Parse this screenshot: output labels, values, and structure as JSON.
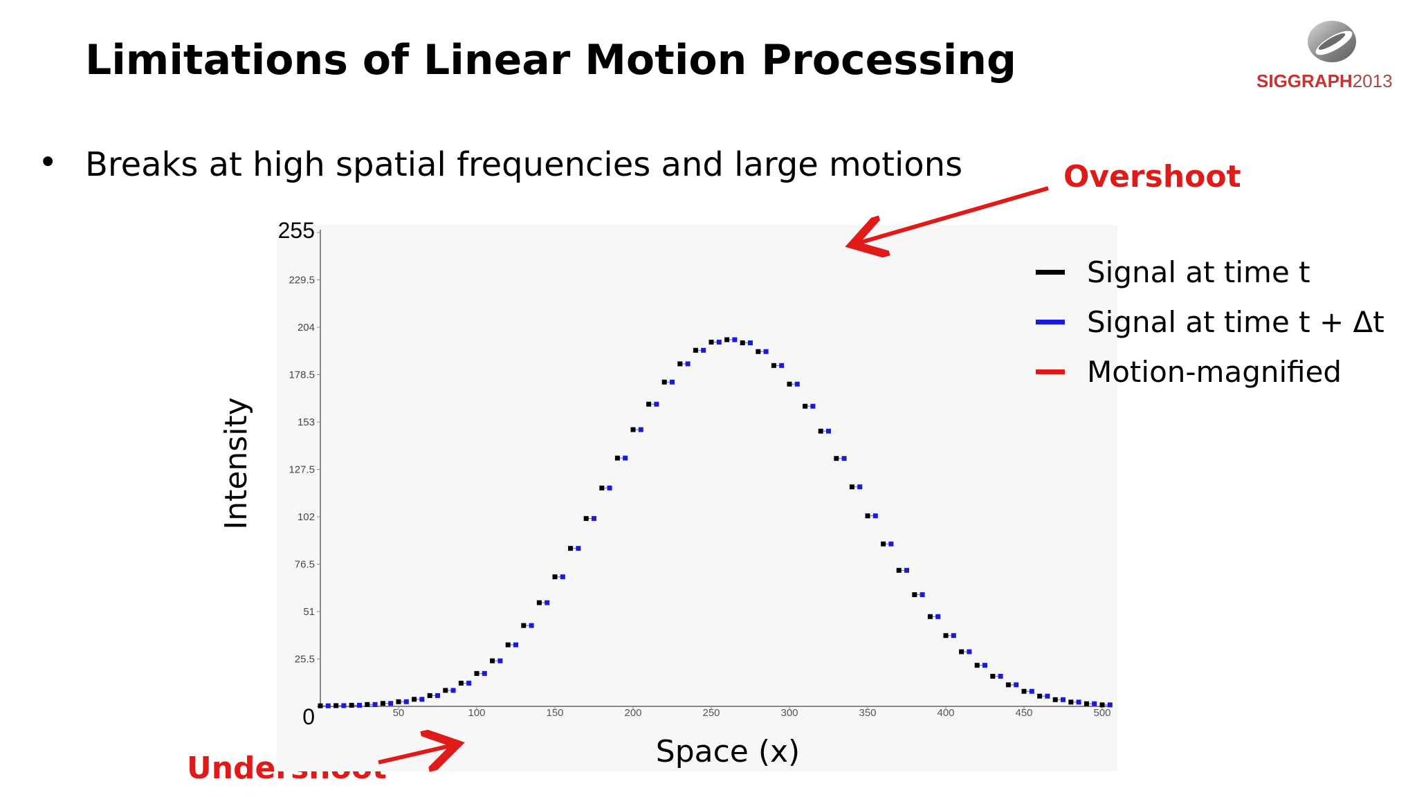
{
  "slide": {
    "title": "Limitations of Linear Motion Processing",
    "bullet_symbol": "•",
    "bullet": "Breaks at high spatial frequencies and large motions",
    "logo_brand": "SIGGRAPH",
    "logo_year": "2013",
    "overshoot_label": "Overshoot",
    "undershoot_label": "Undershoot"
  },
  "colors": {
    "signal_t": "#000000",
    "signal_t_dt": "#1a1ad9",
    "motion_magnified": "#e01919",
    "annotation": "#e01919",
    "plot_background": "#f7f7f7"
  },
  "chart_data": {
    "type": "scatter",
    "title": "",
    "xlabel": "Space (x)",
    "ylabel": "Intensity",
    "xlim": [
      0,
      500
    ],
    "ylim": [
      0,
      255
    ],
    "xticks": [
      "50",
      "100",
      "150",
      "200",
      "250",
      "300",
      "350",
      "400",
      "450",
      "500"
    ],
    "yticks": [
      "0",
      "25.5",
      "51",
      "76.5",
      "102",
      "127.5",
      "153",
      "178.5",
      "204",
      "229.5",
      "255"
    ],
    "grid": false,
    "legend_position": "top-right",
    "legend": [
      {
        "label": "Signal at time t",
        "color": "#000000"
      },
      {
        "label": "Signal at time t + Δt",
        "color": "#1a1ad9"
      },
      {
        "label": "Motion-magnified",
        "color": "#e01919"
      }
    ],
    "series": [
      {
        "name": "Signal at time t",
        "x": [
          0,
          10,
          20,
          30,
          40,
          50,
          60,
          70,
          80,
          90,
          100,
          110,
          120,
          130,
          140,
          150,
          160,
          170,
          180,
          190,
          200,
          210,
          220,
          230,
          240,
          250,
          260,
          270,
          280,
          290,
          300,
          310,
          320,
          330,
          340,
          350,
          360,
          370,
          380,
          390,
          400,
          410,
          420,
          430,
          440,
          450,
          460,
          470,
          480,
          490,
          500
        ],
        "y": [
          0.3,
          0.4,
          0.6,
          1,
          1.6,
          2.5,
          3.8,
          5.8,
          8.6,
          12.5,
          17.7,
          24.5,
          33.1,
          43.5,
          55.8,
          69.7,
          85,
          101.1,
          117.5,
          133.6,
          148.9,
          162.6,
          174.5,
          184.3,
          191.6,
          196,
          197.3,
          195.6,
          190.9,
          183.4,
          173.4,
          161.5,
          148.1,
          133.4,
          118.1,
          102.5,
          87.4,
          73.2,
          60.1,
          48.3,
          38.1,
          29.4,
          22.1,
          16.2,
          11.6,
          8.1,
          5.5,
          3.6,
          2.3,
          1.4,
          0.8
        ]
      },
      {
        "name": "Signal at time t + Δt",
        "x": [
          5,
          15,
          25,
          35,
          45,
          55,
          65,
          75,
          85,
          95,
          105,
          115,
          125,
          135,
          145,
          155,
          165,
          175,
          185,
          195,
          205,
          215,
          225,
          235,
          245,
          255,
          265,
          275,
          285,
          295,
          305,
          315,
          325,
          335,
          345,
          355,
          365,
          375,
          385,
          395,
          405,
          415,
          425,
          435,
          445,
          455,
          465,
          475,
          485,
          495,
          505
        ],
        "y": [
          0.3,
          0.4,
          0.6,
          1,
          1.6,
          2.5,
          3.8,
          5.8,
          8.6,
          12.5,
          17.7,
          24.5,
          33.1,
          43.5,
          55.8,
          69.7,
          85,
          101.1,
          117.5,
          133.6,
          148.9,
          162.6,
          174.5,
          184.3,
          191.6,
          196,
          197.3,
          195.6,
          190.9,
          183.4,
          173.4,
          161.5,
          148.1,
          133.4,
          118.1,
          102.5,
          87.4,
          73.2,
          60.1,
          48.3,
          38.1,
          29.4,
          22.1,
          16.2,
          11.6,
          8.1,
          5.5,
          3.6,
          2.3,
          1.4,
          0.8
        ]
      }
    ]
  }
}
